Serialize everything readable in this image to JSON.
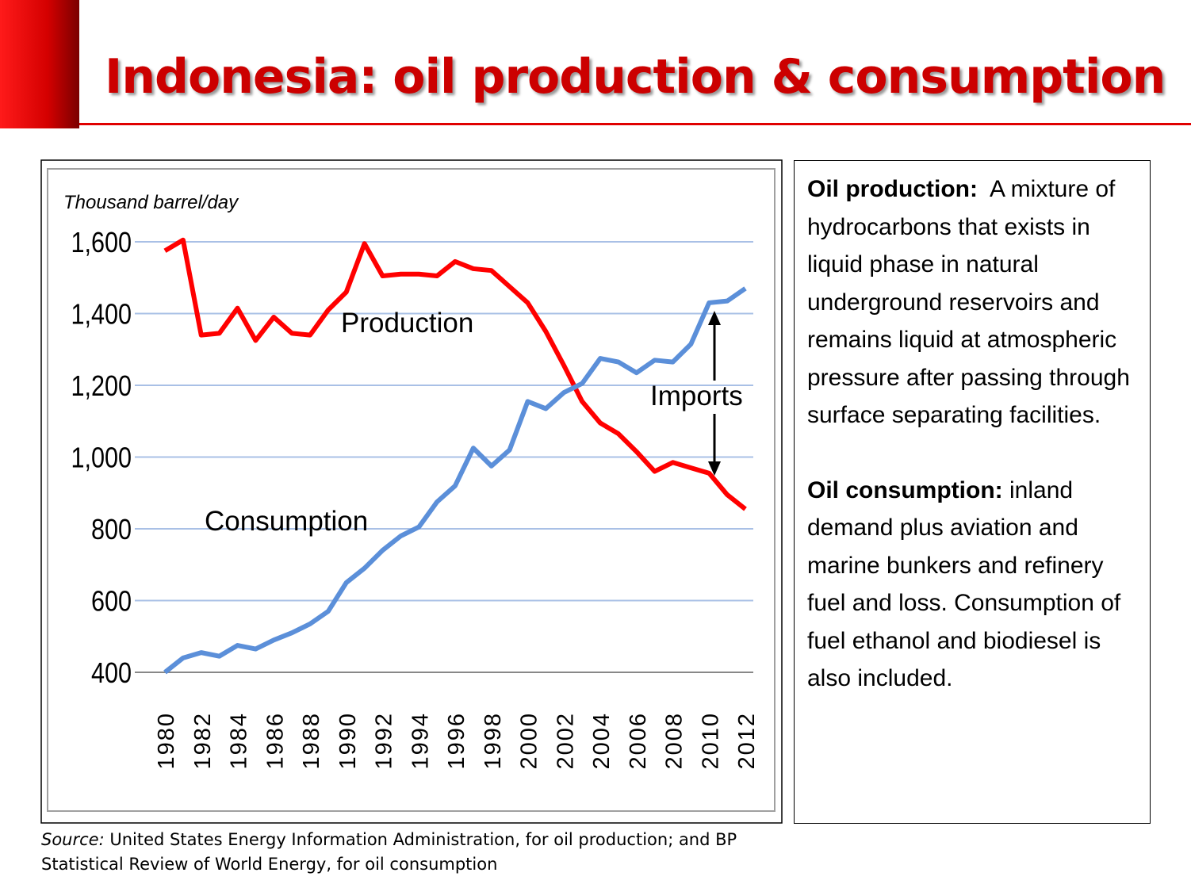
{
  "title": "Indonesia: oil production & consumption",
  "chart_data": {
    "type": "line",
    "y_label": "Thousand barrel/day",
    "x": [
      1980,
      1981,
      1982,
      1983,
      1984,
      1985,
      1986,
      1987,
      1988,
      1989,
      1990,
      1991,
      1992,
      1993,
      1994,
      1995,
      1996,
      1997,
      1998,
      1999,
      2000,
      2001,
      2002,
      2003,
      2004,
      2005,
      2006,
      2007,
      2008,
      2009,
      2010,
      2011,
      2012
    ],
    "xlim": [
      1980,
      2012
    ],
    "xticks": [
      1980,
      1982,
      1984,
      1986,
      1988,
      1990,
      1992,
      1994,
      1996,
      1998,
      2000,
      2002,
      2004,
      2006,
      2008,
      2010,
      2012
    ],
    "ylim": [
      400,
      1600
    ],
    "yticks": [
      {
        "value": 400,
        "label": "400"
      },
      {
        "value": 600,
        "label": "600"
      },
      {
        "value": 800,
        "label": "800"
      },
      {
        "value": 1000,
        "label": "1,000"
      },
      {
        "value": 1200,
        "label": "1,200"
      },
      {
        "value": 1400,
        "label": "1,400"
      },
      {
        "value": 1600,
        "label": "1,600"
      }
    ],
    "grid": true,
    "series": [
      {
        "name": "Production",
        "color": "#ff0000",
        "values": [
          1575,
          1605,
          1340,
          1345,
          1415,
          1325,
          1390,
          1345,
          1340,
          1410,
          1460,
          1595,
          1505,
          1510,
          1510,
          1505,
          1545,
          1525,
          1520,
          1475,
          1430,
          1350,
          1255,
          1155,
          1095,
          1065,
          1015,
          960,
          985,
          970,
          955,
          895,
          855
        ]
      },
      {
        "name": "Consumption",
        "color": "#5b8fd9",
        "values": [
          400,
          440,
          455,
          445,
          475,
          465,
          490,
          510,
          535,
          570,
          650,
          690,
          740,
          780,
          805,
          875,
          920,
          1025,
          975,
          1020,
          1155,
          1135,
          1180,
          1205,
          1275,
          1265,
          1235,
          1270,
          1265,
          1315,
          1430,
          1435,
          1470
        ]
      }
    ],
    "annotation": "Imports"
  },
  "source": {
    "label": "Source:",
    "text": "United States Energy Information Administration, for oil production; and BP Statistical Review of World Energy, for oil consumption"
  },
  "definitions": [
    {
      "term": "Oil production:",
      "text": "A mixture of hydrocarbons that exists in liquid phase in natural underground reservoirs and remains liquid at atmospheric pressure after passing through surface separating facilities."
    },
    {
      "term": "Oil consumption:",
      "text": "inland demand plus aviation and marine bunkers and refinery fuel and loss. Consumption of fuel ethanol and biodiesel is also included."
    }
  ]
}
